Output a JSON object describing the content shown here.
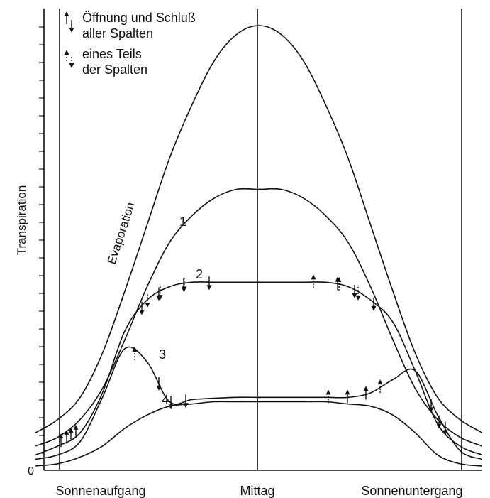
{
  "chart_data": {
    "type": "line",
    "title": "",
    "ylabel": "Transpiration",
    "y_zero_label": "0",
    "x_tick_labels": [
      "Sonnenaufgang",
      "Mittag",
      "Sonnenuntergang"
    ],
    "x": [
      0,
      0.05,
      0.1,
      0.15,
      0.2,
      0.25,
      0.3,
      0.35,
      0.4,
      0.45,
      0.5,
      0.55,
      0.6,
      0.65,
      0.7,
      0.75,
      0.8,
      0.85,
      0.9,
      0.95,
      1
    ],
    "series": [
      {
        "name": "Evaporation",
        "values": [
          0.08,
          0.11,
          0.16,
          0.26,
          0.4,
          0.55,
          0.7,
          0.82,
          0.92,
          0.98,
          1.0,
          0.98,
          0.92,
          0.82,
          0.7,
          0.55,
          0.4,
          0.26,
          0.16,
          0.11,
          0.08
        ]
      },
      {
        "name": "1",
        "values": [
          0.05,
          0.07,
          0.11,
          0.18,
          0.29,
          0.41,
          0.51,
          0.57,
          0.61,
          0.63,
          0.63,
          0.63,
          0.61,
          0.57,
          0.51,
          0.41,
          0.29,
          0.18,
          0.11,
          0.07,
          0.05
        ]
      },
      {
        "name": "2",
        "values": [
          0.03,
          0.05,
          0.08,
          0.17,
          0.31,
          0.38,
          0.41,
          0.42,
          0.42,
          0.42,
          0.42,
          0.42,
          0.42,
          0.42,
          0.41,
          0.38,
          0.33,
          0.22,
          0.1,
          0.05,
          0.03
        ]
      },
      {
        "name": "3",
        "values": [
          0.02,
          0.03,
          0.06,
          0.16,
          0.27,
          0.24,
          0.15,
          0.155,
          0.158,
          0.16,
          0.16,
          0.16,
          0.16,
          0.16,
          0.16,
          0.17,
          0.2,
          0.22,
          0.12,
          0.04,
          0.02
        ]
      },
      {
        "name": "4",
        "values": [
          0.005,
          0.01,
          0.025,
          0.05,
          0.09,
          0.12,
          0.14,
          0.145,
          0.15,
          0.15,
          0.15,
          0.15,
          0.15,
          0.15,
          0.145,
          0.14,
          0.12,
          0.08,
          0.03,
          0.01,
          0.005
        ]
      }
    ],
    "legend": [
      {
        "symbol": "arrows-solid",
        "text": [
          "Öffnung und Schluß",
          "aller Spalten"
        ]
      },
      {
        "symbol": "arrows-dotted",
        "text": [
          "eines Teils",
          "der Spalten"
        ]
      }
    ],
    "grid": false,
    "legend_position": "top-left"
  }
}
